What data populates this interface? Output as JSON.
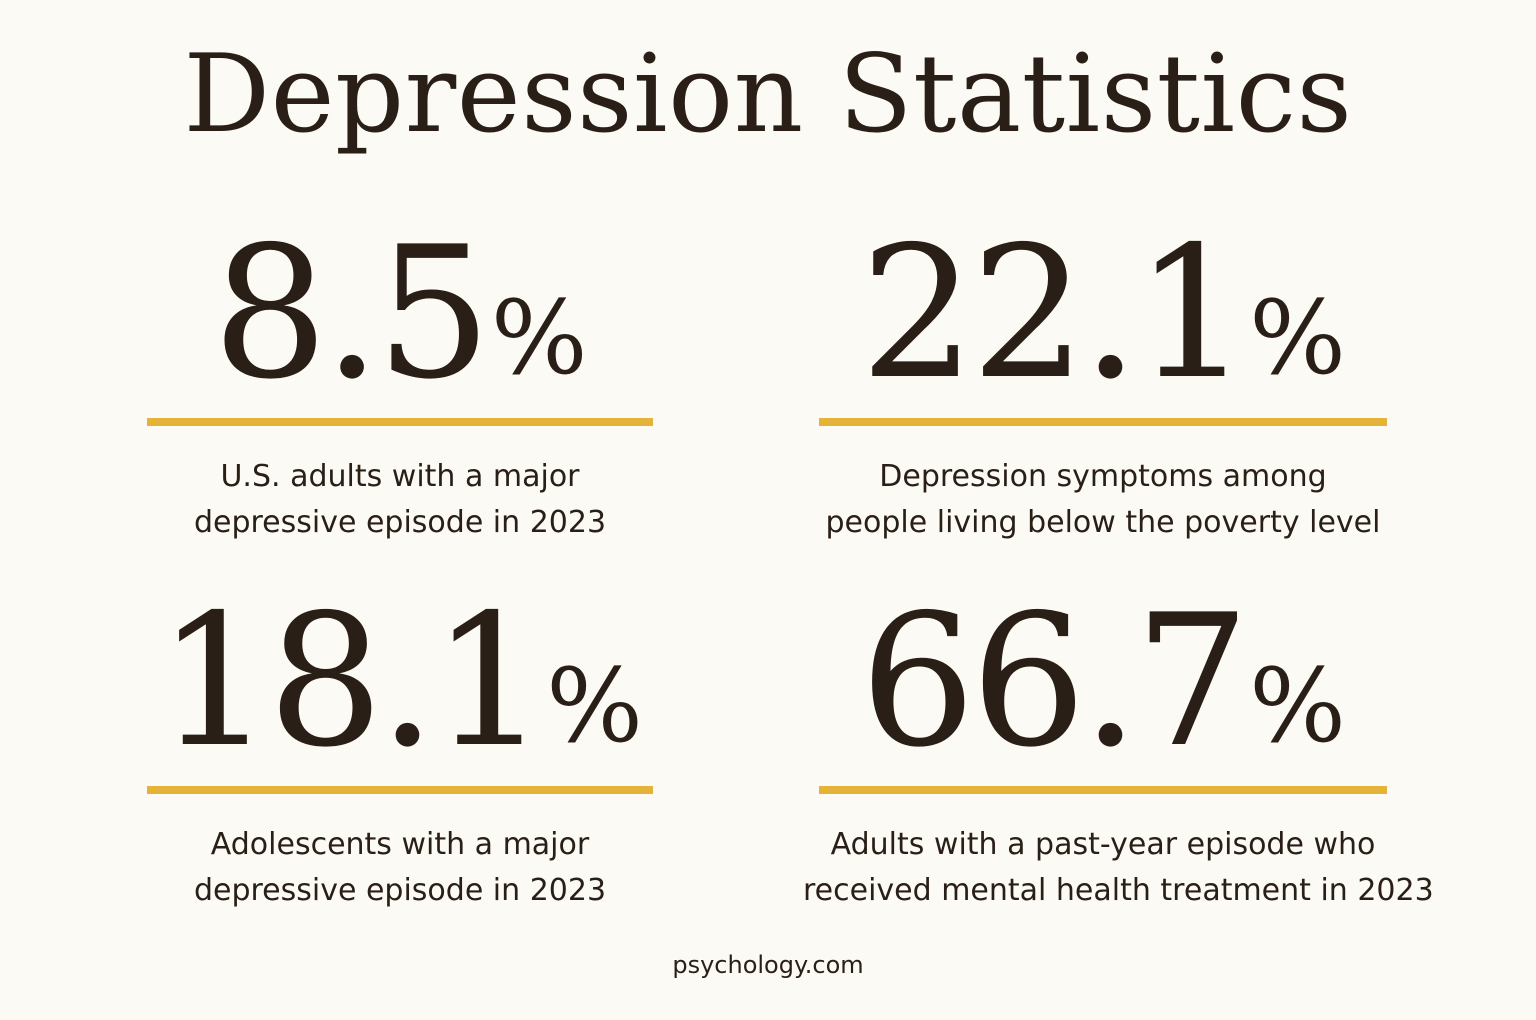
{
  "title": "Depression Statistics",
  "colors": {
    "background": "#fcfaf5",
    "text": "#2a1f17",
    "accent_rule": "#e5b33a"
  },
  "stats": [
    {
      "value": "8.5",
      "unit": "%",
      "caption_lines": [
        "U.S. adults with a major",
        "depressive episode in 2023"
      ]
    },
    {
      "value": "22.1",
      "unit": "%",
      "caption_lines": [
        "Depression symptoms among",
        "people living below the poverty level"
      ]
    },
    {
      "value": "18.1",
      "unit": "%",
      "caption_lines": [
        "Adolescents with a major",
        "depressive episode in 2023"
      ]
    },
    {
      "value": "66.7",
      "unit": "%",
      "caption_lines": [
        "Adults with a past-year episode who",
        "received mental health treatment in 2023"
      ]
    }
  ],
  "footer": "psychology.com"
}
